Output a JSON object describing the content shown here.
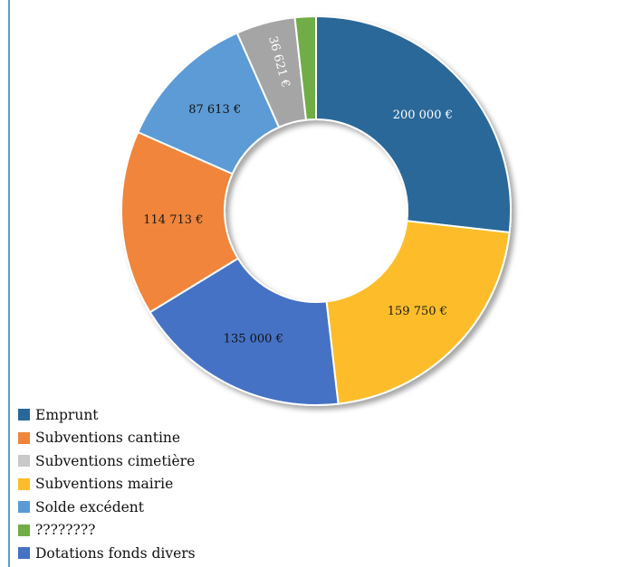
{
  "chart_data": {
    "type": "pie",
    "donut": true,
    "title": "",
    "legend_position": "bottom-left",
    "slices": [
      {
        "label": "Emprunt",
        "value": 200000,
        "display": "200 000 €",
        "color": "#2a6799"
      },
      {
        "label": "Subventions mairie",
        "value": 159750,
        "display": "159 750 €",
        "color": "#fdbd2a"
      },
      {
        "label": "Dotations fonds divers",
        "value": 135000,
        "display": "135 000 €",
        "color": "#4472c4"
      },
      {
        "label": "Subventions cantine",
        "value": 114713,
        "display": "114 713 €",
        "color": "#f0853b"
      },
      {
        "label": "Solde excédent",
        "value": 87613,
        "display": "87 613 €",
        "color": "#5b9bd5"
      },
      {
        "label": "Subventions cimetière",
        "value": 36621,
        "display": "36 621 €",
        "color": "#a5a5a5"
      },
      {
        "label": "????????",
        "value": 13000,
        "display": "",
        "color": "#70ad47"
      }
    ],
    "legend": [
      {
        "label": "Emprunt",
        "color": "#2a6799"
      },
      {
        "label": "Subventions cantine",
        "color": "#f0853b"
      },
      {
        "label": "Subventions cimetière",
        "color": "#c9c9c9"
      },
      {
        "label": "Subventions mairie",
        "color": "#fdbd2a"
      },
      {
        "label": "Solde excédent",
        "color": "#5b9bd5"
      },
      {
        "label": "????????",
        "color": "#70ad47"
      },
      {
        "label": "Dotations fonds divers",
        "color": "#4472c4"
      }
    ]
  }
}
